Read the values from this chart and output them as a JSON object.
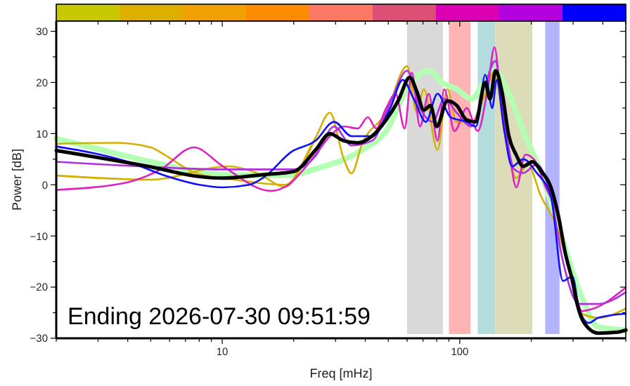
{
  "chart_data": {
    "type": "line",
    "xlabel": "Freq [mHz]",
    "ylabel": "Power [dB]",
    "log": "x",
    "grid": false,
    "line_style": "solid",
    "marker": "none",
    "xlim": [
      2,
      500
    ],
    "ylim": [
      -30,
      32
    ],
    "xticks": [
      {
        "value": 2,
        "label": null
      },
      {
        "value": 3,
        "label": null
      },
      {
        "value": 4,
        "label": null
      },
      {
        "value": 5,
        "label": null
      },
      {
        "value": 6,
        "label": null
      },
      {
        "value": 7,
        "label": null
      },
      {
        "value": 8,
        "label": null
      },
      {
        "value": 9,
        "label": null
      },
      10,
      {
        "value": 20,
        "label": null
      },
      {
        "value": 30,
        "label": null
      },
      {
        "value": 40,
        "label": null
      },
      {
        "value": 50,
        "label": null
      },
      {
        "value": 60,
        "label": null
      },
      {
        "value": 70,
        "label": null
      },
      {
        "value": 80,
        "label": null
      },
      {
        "value": 90,
        "label": null
      },
      100,
      {
        "value": 200,
        "label": null
      },
      {
        "value": 300,
        "label": null
      },
      {
        "value": 400,
        "label": null
      },
      {
        "value": 500,
        "label": null
      }
    ],
    "yticks": [
      -30,
      {
        "value": -25,
        "label": null
      },
      -20,
      {
        "value": -15,
        "label": null
      },
      -10,
      {
        "value": -5,
        "label": null
      },
      0,
      {
        "value": 5,
        "label": null
      },
      10,
      {
        "value": 15,
        "label": null
      },
      20,
      {
        "value": 25,
        "label": null
      },
      30
    ],
    "bands": [
      {
        "axis": "x",
        "from": 60,
        "to": 85,
        "color": "#d9d9d9"
      },
      {
        "axis": "x",
        "from": 90,
        "to": 111,
        "color": "#ffb3b3"
      },
      {
        "axis": "x",
        "from": 119,
        "to": 141,
        "color": "#b3dcdc"
      },
      {
        "axis": "x",
        "from": 141,
        "to": 202,
        "color": "#dcdcb8"
      },
      {
        "axis": "x",
        "from": 229,
        "to": 263,
        "color": "#b3b3ff"
      }
    ],
    "annotations": [
      "Ending 2026-07-30 09:51:59"
    ],
    "series": [
      {
        "color": "#b3ffb3",
        "x": [
          2,
          3,
          5,
          8,
          10,
          15,
          20,
          24.7,
          38.8,
          49,
          61.6,
          74,
          84,
          97,
          112,
          128,
          140,
          161,
          185,
          220,
          266,
          318,
          383,
          500
        ],
        "values": [
          9,
          7,
          4.5,
          2.5,
          2,
          1.8,
          2,
          3.1,
          6.8,
          10.5,
          19.6,
          22.3,
          20,
          18.7,
          16.8,
          20.5,
          22.3,
          17.8,
          10.5,
          2.3,
          -9.6,
          -20.6,
          -27.8,
          -28.4
        ]
      },
      {
        "color": "#d4b000",
        "x": [
          2,
          3.6,
          5,
          5.7,
          7.8,
          11.3,
          18.4,
          24.7,
          28.4,
          32.5,
          35,
          38.8,
          49,
          60,
          66,
          70.6,
          80.6,
          88.6,
          97,
          112,
          128,
          140,
          154,
          173,
          193,
          220,
          254,
          298,
          327,
          383,
          500
        ],
        "values": [
          8,
          8.2,
          7.3,
          5.9,
          2.2,
          1,
          0,
          9.2,
          14.1,
          5,
          2.2,
          8,
          14.1,
          23.2,
          14.1,
          18.7,
          6.8,
          18.7,
          12.3,
          12.3,
          17.8,
          22.3,
          10.5,
          1.3,
          4,
          -2.3,
          -7.8,
          -18.8,
          -25.2,
          -26,
          -24.2
        ]
      },
      {
        "color": "#d4b000",
        "x": [
          2,
          5,
          10.6,
          14,
          18.4,
          21.3,
          24.7
        ],
        "values": [
          1.8,
          1,
          3.6,
          2.3,
          -0.4,
          3.1,
          9.2
        ]
      },
      {
        "color": "#e020c0",
        "x": [
          2,
          4,
          5.5,
          7.6,
          10,
          16,
          19,
          22,
          24.7,
          28.4,
          32.5,
          37.2,
          41,
          44.5,
          49,
          53.7,
          58.6,
          62.8,
          68,
          74,
          80.6,
          86,
          95,
          107,
          119,
          131,
          140,
          150,
          161,
          173,
          189,
          206,
          230,
          254,
          278,
          305,
          327,
          365,
          500
        ],
        "values": [
          -1,
          0.5,
          3,
          7.3,
          3.7,
          -1.2,
          0,
          3,
          5.9,
          9.5,
          11.4,
          11,
          13.2,
          11,
          15,
          17.8,
          11,
          21.9,
          11.4,
          17.8,
          8.6,
          18.7,
          10.5,
          15,
          10.5,
          18.7,
          26.9,
          15,
          6.8,
          -0.5,
          5.9,
          4.9,
          -0.5,
          -5,
          -13.3,
          -20.6,
          -24.7,
          -24.2,
          -20.1
        ]
      },
      {
        "color": "#b030e0",
        "x": [
          2,
          5,
          10,
          20,
          24.7,
          29.6,
          35,
          42.7,
          51,
          60,
          68,
          77,
          86,
          97,
          112,
          128,
          141,
          154,
          169,
          185,
          211,
          242,
          272,
          318,
          383,
          500
        ],
        "values": [
          4.5,
          3.5,
          3,
          3,
          5.6,
          11.4,
          7.7,
          8.6,
          16,
          22.3,
          15,
          12.3,
          16.8,
          14.1,
          11.4,
          19.6,
          24.2,
          12.3,
          3.1,
          2.3,
          4,
          -2.3,
          -15,
          -23.3,
          -23.3,
          -21
        ]
      },
      {
        "color": "#1010ff",
        "x": [
          2,
          4,
          6,
          8,
          10,
          13,
          15,
          19.5,
          24.7,
          29.6,
          35,
          42.7,
          51,
          57.5,
          64,
          72,
          80.6,
          91.5,
          107,
          117,
          128,
          137,
          143,
          154,
          166,
          185,
          211,
          242,
          272,
          298,
          318,
          349,
          383,
          500
        ],
        "values": [
          7.5,
          4.5,
          1.5,
          0,
          -0.5,
          0,
          1.5,
          6.4,
          8.6,
          12.3,
          9.5,
          9.5,
          15,
          20.5,
          16.8,
          12.3,
          17.8,
          13.2,
          12.3,
          11.4,
          21.5,
          15,
          20.5,
          10.5,
          3.6,
          5,
          2.3,
          -2.3,
          -18.8,
          -17.9,
          -24.2,
          -27,
          -26,
          -25.2
        ]
      },
      {
        "color": "#000000",
        "x": [
          2,
          5,
          8,
          10,
          15,
          20,
          24.7,
          28.4,
          32.5,
          37.2,
          42.7,
          49,
          55,
          61.6,
          66,
          70.6,
          75.3,
          80,
          88.6,
          97.1,
          106.8,
          116.6,
          128,
          134,
          141.6,
          150.5,
          161,
          172.6,
          185,
          202,
          220,
          242,
          260,
          278,
          298,
          312,
          334,
          383,
          461,
          500
        ],
        "values": [
          6.7,
          3.5,
          1.6,
          1.3,
          2,
          2.6,
          6.8,
          10,
          8.6,
          8.2,
          9.5,
          12.7,
          16.4,
          21,
          18.2,
          14.6,
          15.5,
          11.4,
          16.4,
          15.5,
          12.7,
          12.3,
          20,
          16.8,
          22.3,
          18.2,
          9.5,
          5.9,
          3.6,
          4.5,
          2.7,
          -0.5,
          -6,
          -13.3,
          -18.8,
          -23.3,
          -27,
          -29,
          -28.8,
          -28.4
        ]
      }
    ]
  }
}
